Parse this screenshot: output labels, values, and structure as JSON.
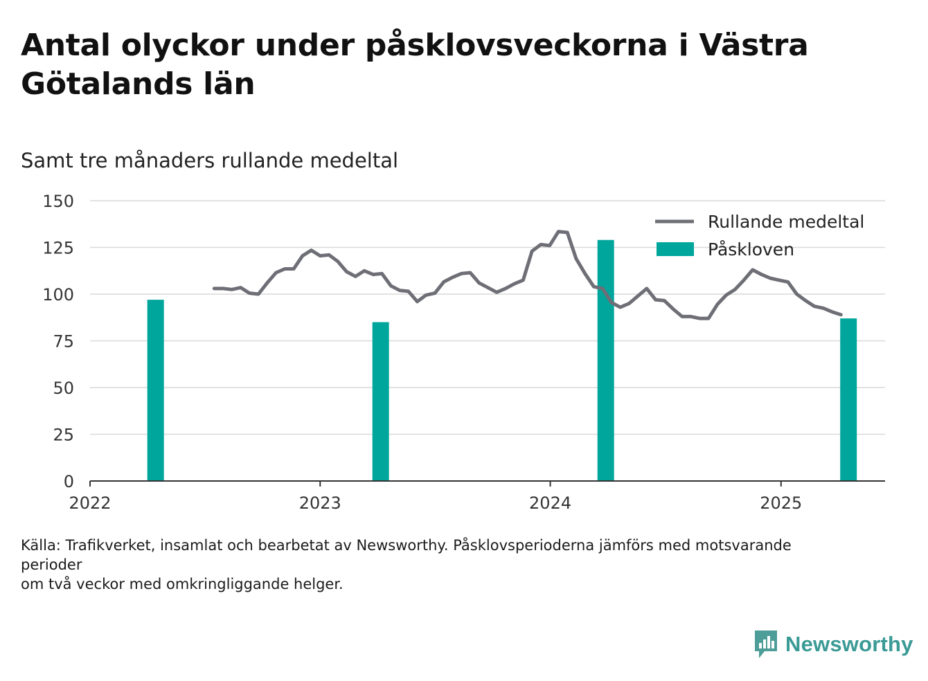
{
  "header": {
    "title": "Antal olyckor under påsklovsveckorna i Västra Götalands län",
    "subtitle": "Samt tre månaders rullande medeltal"
  },
  "footer": {
    "source_line1": "Källa: Trafikverket, insamlat och bearbetat av Newsworthy. Påsklovsperioderna jämförs med motsvarande perioder",
    "source_line2": "om två veckor med omkringliggande helger.",
    "brand_name": "Newsworthy"
  },
  "colors": {
    "line": "#6e6e76",
    "bar": "#00a69c",
    "grid": "#d9d9d9",
    "axis": "#333333",
    "brand": "#3a9a95"
  },
  "chart_data": {
    "type": "bar+line",
    "title": "Antal olyckor under påsklovsveckorna i Västra Götalands län",
    "subtitle": "Samt tre månaders rullande medeltal",
    "xlim": [
      "2022-01-01",
      "2025-06-15"
    ],
    "ylim": [
      0,
      150
    ],
    "yticks": [
      0,
      25,
      50,
      75,
      100,
      125,
      150
    ],
    "xticks": [
      {
        "date": "2022-01-01",
        "label": "2022"
      },
      {
        "date": "2023-01-01",
        "label": "2023"
      },
      {
        "date": "2024-01-01",
        "label": "2024"
      },
      {
        "date": "2025-01-01",
        "label": "2025"
      }
    ],
    "grid": true,
    "legend_position": "top-right",
    "series": [
      {
        "name": "Rullande medeltal",
        "type": "line",
        "points": [
          [
            "2022-07-17",
            103
          ],
          [
            "2022-07-31",
            103
          ],
          [
            "2022-08-14",
            102.5
          ],
          [
            "2022-08-28",
            103.5
          ],
          [
            "2022-09-11",
            100.5
          ],
          [
            "2022-09-25",
            100
          ],
          [
            "2022-10-09",
            106
          ],
          [
            "2022-10-23",
            111.5
          ],
          [
            "2022-11-06",
            113.5
          ],
          [
            "2022-11-20",
            113.5
          ],
          [
            "2022-12-04",
            120.5
          ],
          [
            "2022-12-18",
            123.5
          ],
          [
            "2023-01-01",
            120.5
          ],
          [
            "2023-01-15",
            121
          ],
          [
            "2023-01-29",
            117.5
          ],
          [
            "2023-02-12",
            112
          ],
          [
            "2023-02-26",
            109.5
          ],
          [
            "2023-03-12",
            112.5
          ],
          [
            "2023-03-26",
            110.5
          ],
          [
            "2023-04-09",
            111
          ],
          [
            "2023-04-23",
            104.5
          ],
          [
            "2023-05-07",
            102
          ],
          [
            "2023-05-21",
            101.5
          ],
          [
            "2023-06-04",
            96
          ],
          [
            "2023-06-18",
            99.5
          ],
          [
            "2023-07-02",
            100.5
          ],
          [
            "2023-07-16",
            106.5
          ],
          [
            "2023-07-30",
            109
          ],
          [
            "2023-08-13",
            111
          ],
          [
            "2023-08-27",
            111.5
          ],
          [
            "2023-09-10",
            106
          ],
          [
            "2023-09-24",
            103.5
          ],
          [
            "2023-10-08",
            101
          ],
          [
            "2023-10-22",
            103
          ],
          [
            "2023-11-05",
            105.5
          ],
          [
            "2023-11-19",
            107.5
          ],
          [
            "2023-12-03",
            123
          ],
          [
            "2023-12-17",
            126.5
          ],
          [
            "2023-12-31",
            126
          ],
          [
            "2024-01-14",
            133.5
          ],
          [
            "2024-01-28",
            133
          ],
          [
            "2024-02-11",
            119
          ],
          [
            "2024-02-25",
            111
          ],
          [
            "2024-03-10",
            104
          ],
          [
            "2024-03-24",
            103
          ],
          [
            "2024-04-07",
            95.5
          ],
          [
            "2024-04-21",
            93
          ],
          [
            "2024-05-05",
            95
          ],
          [
            "2024-05-19",
            99
          ],
          [
            "2024-06-02",
            103
          ],
          [
            "2024-06-16",
            97
          ],
          [
            "2024-06-30",
            96.5
          ],
          [
            "2024-07-14",
            92
          ],
          [
            "2024-07-28",
            88
          ],
          [
            "2024-08-11",
            88
          ],
          [
            "2024-08-25",
            87
          ],
          [
            "2024-09-08",
            87
          ],
          [
            "2024-09-22",
            94.5
          ],
          [
            "2024-10-06",
            99.5
          ],
          [
            "2024-10-20",
            102.5
          ],
          [
            "2024-11-03",
            107.5
          ],
          [
            "2024-11-17",
            113
          ],
          [
            "2024-12-01",
            110.5
          ],
          [
            "2024-12-15",
            108.5
          ],
          [
            "2024-12-29",
            107.5
          ],
          [
            "2025-01-12",
            106.5
          ],
          [
            "2025-01-26",
            100
          ],
          [
            "2025-02-09",
            96.5
          ],
          [
            "2025-02-23",
            93.5
          ],
          [
            "2025-03-09",
            92.5
          ],
          [
            "2025-03-23",
            90.5
          ],
          [
            "2025-04-06",
            89
          ]
        ]
      },
      {
        "name": "Påskloven",
        "type": "bar",
        "points": [
          [
            "2022-04-15",
            97
          ],
          [
            "2023-04-07",
            85
          ],
          [
            "2024-03-29",
            129
          ],
          [
            "2025-04-18",
            87
          ]
        ]
      }
    ]
  }
}
